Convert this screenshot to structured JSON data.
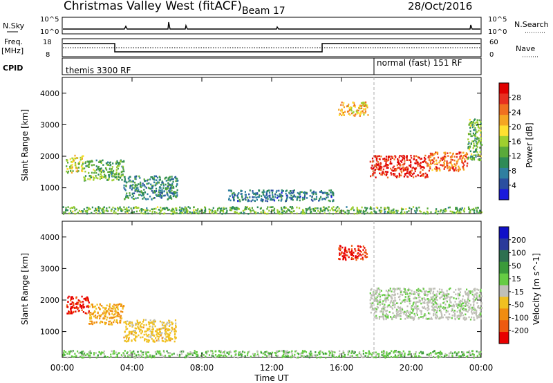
{
  "header": {
    "station": "Christmas Valley West (fitACF)",
    "beam": "Beam 17",
    "date": "28/Oct/2016"
  },
  "panels": {
    "nsky_label": "N.Sky",
    "nsearch_label": "N.Search",
    "freq_label_1": "Freq.",
    "freq_label_2": "[MHz]",
    "nave_label": "Nave",
    "cpid_label": "CPID",
    "log_ticks": [
      "10^5",
      "10^0"
    ],
    "freq_ticks": [
      "18",
      "8"
    ],
    "nave_ticks": [
      "60",
      "0"
    ],
    "cpid_left": "themis 3300 RF",
    "cpid_right": "normal (fast) 151 RF"
  },
  "colors": {
    "power_scale": [
      "#1a1adc",
      "#2a4fa0",
      "#2f7fa0",
      "#2e8b57",
      "#5aaa3a",
      "#9fcf2f",
      "#ffe030",
      "#f5a623",
      "#f07020",
      "#e83020",
      "#e00000"
    ],
    "velocity_scale": [
      "#1010c8",
      "#2a3a9a",
      "#2e7050",
      "#3a9a3a",
      "#66cc44",
      "#c0c0b8",
      "#f0c020",
      "#f08c10",
      "#ee5a10",
      "#e80000"
    ],
    "ground_scatter": "#c0c0b8"
  },
  "chart_data": [
    {
      "type": "heatmap",
      "title": "",
      "xlabel": "",
      "ylabel": "Slant Range [km]",
      "colorbar_label": "Power [dB]",
      "colorbar_ticks": [
        "28",
        "24",
        "20",
        "16",
        "12",
        "8",
        "4"
      ],
      "xlim": [
        0,
        24
      ],
      "ylim": [
        180,
        4500
      ],
      "y_ticks": [
        "4000",
        "3000",
        "2000",
        "1000"
      ],
      "x_ticks": [
        "00:00",
        "04:00",
        "08:00",
        "12:00",
        "16:00",
        "20:00",
        "00:00"
      ],
      "regions": [
        {
          "t": [
            0.2,
            1.2
          ],
          "r": [
            1500,
            2050
          ],
          "value": 16
        },
        {
          "t": [
            1.2,
            3.5
          ],
          "r": [
            1250,
            1900
          ],
          "value": 12
        },
        {
          "t": [
            3.5,
            6.6
          ],
          "r": [
            650,
            1400
          ],
          "value": 8
        },
        {
          "t": [
            15.8,
            17.5
          ],
          "r": [
            3300,
            3750
          ],
          "value": 20
        },
        {
          "t": [
            17.6,
            21.0
          ],
          "r": [
            1350,
            2050
          ],
          "value": 28
        },
        {
          "t": [
            21.0,
            23.2
          ],
          "r": [
            1550,
            2150
          ],
          "value": 24
        },
        {
          "t": [
            23.2,
            24.0
          ],
          "r": [
            1900,
            3200
          ],
          "value": 12
        },
        {
          "t": [
            9.5,
            15.5
          ],
          "r": [
            600,
            950
          ],
          "value": 6
        },
        {
          "t": [
            0.0,
            24.0
          ],
          "r": [
            200,
            420
          ],
          "value": 12
        }
      ]
    },
    {
      "type": "heatmap",
      "title": "",
      "xlabel": "Time UT",
      "ylabel": "Slant Range [km]",
      "colorbar_label": "Velocity [m s^-1]",
      "colorbar_ticks": [
        "200",
        "100",
        "50",
        "15",
        "-15",
        "-50",
        "-100",
        "-200"
      ],
      "xlim": [
        0,
        24
      ],
      "ylim": [
        180,
        4500
      ],
      "y_ticks": [
        "4000",
        "3000",
        "2000",
        "1000"
      ],
      "x_ticks": [
        "00:00",
        "04:00",
        "08:00",
        "12:00",
        "16:00",
        "20:00",
        "00:00"
      ],
      "regions": [
        {
          "t": [
            0.2,
            1.5
          ],
          "r": [
            1600,
            2150
          ],
          "value": -200
        },
        {
          "t": [
            1.5,
            3.5
          ],
          "r": [
            1250,
            1900
          ],
          "value": -100
        },
        {
          "t": [
            3.5,
            6.5
          ],
          "r": [
            700,
            1400
          ],
          "value": -70
        },
        {
          "t": [
            15.8,
            17.5
          ],
          "r": [
            3300,
            3750
          ],
          "value": -200
        },
        {
          "t": [
            17.6,
            24.0
          ],
          "r": [
            1400,
            2400
          ],
          "value": 0
        },
        {
          "t": [
            0.0,
            24.0
          ],
          "r": [
            200,
            420
          ],
          "value": 30
        }
      ]
    }
  ]
}
